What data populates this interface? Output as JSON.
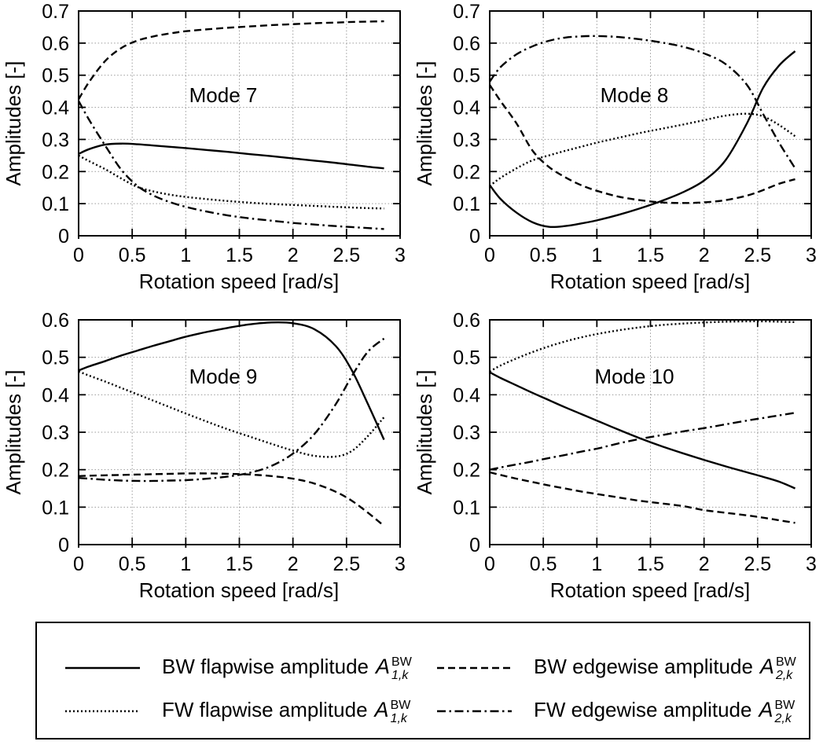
{
  "figure": {
    "xlabel": "Rotation speed [rad/s]",
    "ylabel": "Amplitudes [-]",
    "line_color": "#000000",
    "grid_color": "#9a9a9a",
    "background": "#ffffff"
  },
  "chart_data": [
    {
      "type": "line",
      "title": "Mode 7",
      "xlabel": "Rotation speed [rad/s]",
      "ylabel": "Amplitudes [-]",
      "xlim": [
        0,
        3
      ],
      "ylim": [
        0,
        0.7
      ],
      "xticks": [
        0,
        0.5,
        1,
        1.5,
        2,
        2.5,
        3
      ],
      "yticks": [
        0,
        0.1,
        0.2,
        0.3,
        0.4,
        0.5,
        0.6,
        0.7
      ],
      "grid": "dotted",
      "x": [
        0,
        0.1,
        0.25,
        0.4,
        0.55,
        0.7,
        0.85,
        1.0,
        1.2,
        1.4,
        1.6,
        1.8,
        2.0,
        2.2,
        2.4,
        2.55,
        2.7,
        2.85
      ],
      "series": [
        {
          "name": "BW flapwise amplitude A_1,k^BW",
          "style": "solid",
          "values": [
            0.255,
            0.27,
            0.284,
            0.287,
            0.285,
            0.281,
            0.277,
            0.273,
            0.267,
            0.261,
            0.254,
            0.248,
            0.241,
            0.234,
            0.227,
            0.221,
            0.215,
            0.21
          ]
        },
        {
          "name": "BW edgewise amplitude A_2,k^BW",
          "style": "dashed",
          "values": [
            0.425,
            0.48,
            0.545,
            0.585,
            0.608,
            0.621,
            0.63,
            0.637,
            0.643,
            0.648,
            0.652,
            0.656,
            0.659,
            0.662,
            0.664,
            0.666,
            0.667,
            0.668
          ]
        },
        {
          "name": "FW flapwise amplitude A_1,k^BW",
          "style": "dotted",
          "values": [
            0.25,
            0.232,
            0.207,
            0.178,
            0.152,
            0.138,
            0.128,
            0.121,
            0.114,
            0.108,
            0.103,
            0.099,
            0.096,
            0.093,
            0.09,
            0.088,
            0.086,
            0.085
          ]
        },
        {
          "name": "FW edgewise amplitude A_2,k^BW",
          "style": "dashdot",
          "values": [
            0.42,
            0.36,
            0.28,
            0.205,
            0.155,
            0.125,
            0.105,
            0.09,
            0.075,
            0.063,
            0.054,
            0.047,
            0.04,
            0.035,
            0.03,
            0.027,
            0.024,
            0.021
          ]
        }
      ]
    },
    {
      "type": "line",
      "title": "Mode 8",
      "xlabel": "Rotation speed [rad/s]",
      "ylabel": "Amplitudes [-]",
      "xlim": [
        0,
        3
      ],
      "ylim": [
        0,
        0.7
      ],
      "xticks": [
        0,
        0.5,
        1,
        1.5,
        2,
        2.5,
        3
      ],
      "yticks": [
        0,
        0.1,
        0.2,
        0.3,
        0.4,
        0.5,
        0.6,
        0.7
      ],
      "grid": "dotted",
      "x": [
        0,
        0.1,
        0.25,
        0.4,
        0.55,
        0.7,
        0.85,
        1.0,
        1.2,
        1.4,
        1.6,
        1.8,
        2.0,
        2.2,
        2.4,
        2.55,
        2.7,
        2.85
      ],
      "series": [
        {
          "name": "BW flapwise amplitude A_1,k^BW",
          "style": "solid",
          "values": [
            0.158,
            0.115,
            0.072,
            0.042,
            0.028,
            0.03,
            0.038,
            0.048,
            0.065,
            0.085,
            0.108,
            0.135,
            0.172,
            0.235,
            0.35,
            0.46,
            0.53,
            0.575
          ]
        },
        {
          "name": "BW edgewise amplitude A_2,k^BW",
          "style": "dashed",
          "values": [
            0.47,
            0.42,
            0.35,
            0.265,
            0.215,
            0.183,
            0.158,
            0.14,
            0.122,
            0.111,
            0.104,
            0.102,
            0.104,
            0.111,
            0.125,
            0.142,
            0.162,
            0.176
          ]
        },
        {
          "name": "FW flapwise amplitude A_1,k^BW",
          "style": "dotted",
          "values": [
            0.155,
            0.18,
            0.21,
            0.235,
            0.25,
            0.264,
            0.277,
            0.29,
            0.305,
            0.32,
            0.333,
            0.346,
            0.36,
            0.374,
            0.38,
            0.372,
            0.345,
            0.31
          ]
        },
        {
          "name": "FW edgewise amplitude A_2,k^BW",
          "style": "dashdot",
          "values": [
            0.48,
            0.525,
            0.565,
            0.59,
            0.607,
            0.617,
            0.621,
            0.622,
            0.619,
            0.612,
            0.602,
            0.589,
            0.568,
            0.535,
            0.47,
            0.38,
            0.29,
            0.21
          ]
        }
      ]
    },
    {
      "type": "line",
      "title": "Mode 9",
      "xlabel": "Rotation speed [rad/s]",
      "ylabel": "Amplitudes [-]",
      "xlim": [
        0,
        3
      ],
      "ylim": [
        0,
        0.6
      ],
      "xticks": [
        0,
        0.5,
        1,
        1.5,
        2,
        2.5,
        3
      ],
      "yticks": [
        0,
        0.1,
        0.2,
        0.3,
        0.4,
        0.5,
        0.6
      ],
      "grid": "dotted",
      "x": [
        0,
        0.1,
        0.25,
        0.4,
        0.55,
        0.7,
        0.85,
        1.0,
        1.2,
        1.4,
        1.6,
        1.8,
        2.0,
        2.2,
        2.4,
        2.55,
        2.7,
        2.85
      ],
      "series": [
        {
          "name": "BW flapwise amplitude A_1,k^BW",
          "style": "solid",
          "values": [
            0.465,
            0.476,
            0.49,
            0.505,
            0.518,
            0.531,
            0.543,
            0.555,
            0.568,
            0.579,
            0.588,
            0.593,
            0.591,
            0.575,
            0.53,
            0.465,
            0.375,
            0.28
          ]
        },
        {
          "name": "BW edgewise amplitude A_2,k^BW",
          "style": "dashed",
          "values": [
            0.183,
            0.184,
            0.185,
            0.186,
            0.187,
            0.188,
            0.189,
            0.19,
            0.19,
            0.189,
            0.187,
            0.183,
            0.176,
            0.163,
            0.141,
            0.117,
            0.085,
            0.05
          ]
        },
        {
          "name": "FW flapwise amplitude A_1,k^BW",
          "style": "dotted",
          "values": [
            0.462,
            0.451,
            0.435,
            0.418,
            0.401,
            0.384,
            0.367,
            0.35,
            0.328,
            0.307,
            0.288,
            0.269,
            0.251,
            0.237,
            0.235,
            0.25,
            0.29,
            0.34
          ]
        },
        {
          "name": "FW edgewise amplitude A_2,k^BW",
          "style": "dashdot",
          "values": [
            0.178,
            0.176,
            0.173,
            0.171,
            0.17,
            0.17,
            0.171,
            0.172,
            0.176,
            0.182,
            0.192,
            0.21,
            0.243,
            0.295,
            0.375,
            0.45,
            0.515,
            0.55
          ]
        }
      ]
    },
    {
      "type": "line",
      "title": "Mode 10",
      "xlabel": "Rotation speed [rad/s]",
      "ylabel": "Amplitudes [-]",
      "xlim": [
        0,
        3
      ],
      "ylim": [
        0,
        0.6
      ],
      "xticks": [
        0,
        0.5,
        1,
        1.5,
        2,
        2.5,
        3
      ],
      "yticks": [
        0,
        0.1,
        0.2,
        0.3,
        0.4,
        0.5,
        0.6
      ],
      "grid": "dotted",
      "x": [
        0,
        0.1,
        0.25,
        0.4,
        0.55,
        0.7,
        0.85,
        1.0,
        1.2,
        1.4,
        1.6,
        1.8,
        2.0,
        2.2,
        2.4,
        2.55,
        2.7,
        2.85
      ],
      "series": [
        {
          "name": "BW flapwise amplitude A_1,k^BW",
          "style": "solid",
          "values": [
            0.46,
            0.445,
            0.425,
            0.405,
            0.386,
            0.367,
            0.349,
            0.331,
            0.307,
            0.284,
            0.263,
            0.244,
            0.226,
            0.209,
            0.193,
            0.181,
            0.168,
            0.15
          ]
        },
        {
          "name": "BW edgewise amplitude A_2,k^BW",
          "style": "dashed",
          "values": [
            0.193,
            0.186,
            0.176,
            0.167,
            0.158,
            0.15,
            0.142,
            0.135,
            0.126,
            0.117,
            0.11,
            0.103,
            0.092,
            0.085,
            0.078,
            0.072,
            0.065,
            0.058
          ]
        },
        {
          "name": "FW flapwise amplitude A_1,k^BW",
          "style": "dotted",
          "values": [
            0.462,
            0.478,
            0.497,
            0.514,
            0.529,
            0.542,
            0.553,
            0.562,
            0.572,
            0.58,
            0.586,
            0.59,
            0.593,
            0.595,
            0.596,
            0.596,
            0.595,
            0.594
          ]
        },
        {
          "name": "FW edgewise amplitude A_2,k^BW",
          "style": "dashdot",
          "values": [
            0.2,
            0.206,
            0.214,
            0.222,
            0.231,
            0.239,
            0.248,
            0.256,
            0.27,
            0.282,
            0.292,
            0.302,
            0.311,
            0.321,
            0.331,
            0.338,
            0.345,
            0.352
          ]
        }
      ]
    }
  ],
  "legend": {
    "entries": [
      {
        "style": "solid",
        "text": "BW flapwise amplitude",
        "symbol": {
          "base": "A",
          "sup": "BW",
          "sub": "1,k"
        }
      },
      {
        "style": "dashed",
        "text": "BW edgewise amplitude",
        "symbol": {
          "base": "A",
          "sup": "BW",
          "sub": "2,k"
        }
      },
      {
        "style": "dotted",
        "text": "FW flapwise amplitude",
        "symbol": {
          "base": "A",
          "sup": "BW",
          "sub": "1,k"
        }
      },
      {
        "style": "dashdot",
        "text": "FW edgewise amplitude",
        "symbol": {
          "base": "A",
          "sup": "BW",
          "sub": "2,k"
        }
      }
    ]
  }
}
